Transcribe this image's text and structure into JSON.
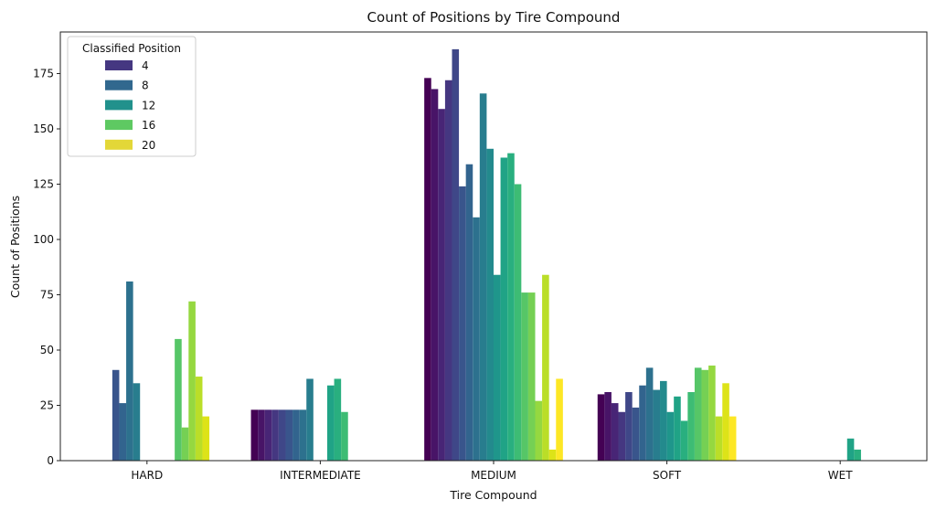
{
  "chart_data": {
    "type": "bar",
    "title": "Count of Positions by Tire Compound",
    "xlabel": "Tire Compound",
    "ylabel": "Count of Positions",
    "categories": [
      "HARD",
      "INTERMEDIATE",
      "MEDIUM",
      "SOFT",
      "WET"
    ],
    "ylim": [
      0,
      190
    ],
    "yticks": [
      0,
      25,
      50,
      75,
      100,
      125,
      150,
      175
    ],
    "grid": false,
    "legend": {
      "title": "Classified Position",
      "placement": "top-left",
      "entries": [
        {
          "label": "4",
          "color": "#453781"
        },
        {
          "label": "8",
          "color": "#31688e"
        },
        {
          "label": "12",
          "color": "#21918c"
        },
        {
          "label": "16",
          "color": "#5ec962"
        },
        {
          "label": "20",
          "color": "#e3d738"
        }
      ]
    },
    "hue": "Classified Position (1–20, viridis)",
    "series": [
      {
        "position": 1,
        "color": "#440154",
        "values": [
          0,
          23,
          173,
          30,
          0
        ]
      },
      {
        "position": 2,
        "color": "#481467",
        "values": [
          0,
          23,
          168,
          31,
          0
        ]
      },
      {
        "position": 3,
        "color": "#482576",
        "values": [
          0,
          23,
          159,
          26,
          0
        ]
      },
      {
        "position": 4,
        "color": "#453781",
        "values": [
          0,
          23,
          172,
          22,
          0
        ]
      },
      {
        "position": 5,
        "color": "#3f4788",
        "values": [
          0,
          23,
          186,
          31,
          0
        ]
      },
      {
        "position": 6,
        "color": "#39558c",
        "values": [
          41,
          23,
          124,
          24,
          0
        ]
      },
      {
        "position": 7,
        "color": "#32648e",
        "values": [
          26,
          23,
          134,
          34,
          0
        ]
      },
      {
        "position": 8,
        "color": "#2d718e",
        "values": [
          81,
          23,
          110,
          42,
          0
        ]
      },
      {
        "position": 9,
        "color": "#287d8e",
        "values": [
          35,
          37,
          166,
          32,
          0
        ]
      },
      {
        "position": 10,
        "color": "#238a8d",
        "values": [
          0,
          0,
          141,
          36,
          0
        ]
      },
      {
        "position": 11,
        "color": "#1f968b",
        "values": [
          0,
          0,
          84,
          22,
          0
        ]
      },
      {
        "position": 12,
        "color": "#20a386",
        "values": [
          0,
          34,
          137,
          29,
          10
        ]
      },
      {
        "position": 13,
        "color": "#29af7f",
        "values": [
          0,
          37,
          139,
          18,
          5
        ]
      },
      {
        "position": 14,
        "color": "#3dbc74",
        "values": [
          0,
          22,
          125,
          31,
          0
        ]
      },
      {
        "position": 15,
        "color": "#56c667",
        "values": [
          55,
          0,
          76,
          42,
          0
        ]
      },
      {
        "position": 16,
        "color": "#75d054",
        "values": [
          15,
          0,
          76,
          41,
          0
        ]
      },
      {
        "position": 17,
        "color": "#95d840",
        "values": [
          72,
          0,
          27,
          43,
          0
        ]
      },
      {
        "position": 18,
        "color": "#bade28",
        "values": [
          38,
          0,
          84,
          20,
          0
        ]
      },
      {
        "position": 19,
        "color": "#dde318",
        "values": [
          20,
          0,
          5,
          35,
          0
        ]
      },
      {
        "position": 20,
        "color": "#fde725",
        "values": [
          0,
          0,
          37,
          20,
          0
        ]
      }
    ]
  }
}
